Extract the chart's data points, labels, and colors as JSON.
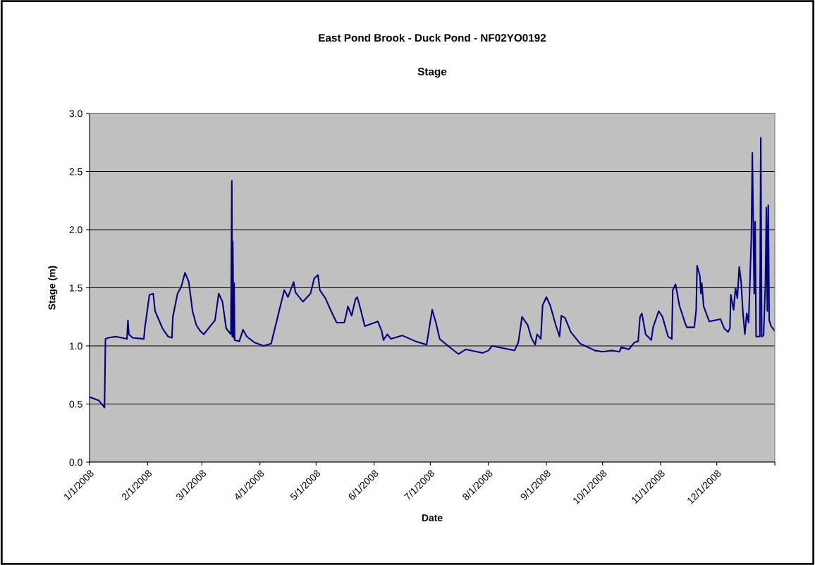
{
  "chart_data": {
    "type": "line",
    "title": "East Pond Brook - Duck Pond - NF02YO0192",
    "subtitle": "Stage",
    "xlabel": "Date",
    "ylabel": "Stage (m)",
    "x": [
      "2008-01-01",
      "2008-01-06",
      "2008-01-09",
      "2008-01-09T12:00",
      "2008-01-11",
      "2008-01-15",
      "2008-01-21",
      "2008-01-21T12:00",
      "2008-01-22",
      "2008-01-24",
      "2008-01-30",
      "2008-01-30T12:00",
      "2008-02-02",
      "2008-02-04",
      "2008-02-05",
      "2008-02-09",
      "2008-02-12",
      "2008-02-14",
      "2008-02-14T12:00",
      "2008-02-17",
      "2008-02-19",
      "2008-02-21",
      "2008-02-23",
      "2008-02-25",
      "2008-02-27",
      "2008-02-29",
      "2008-03-02",
      "2008-03-08",
      "2008-03-10",
      "2008-03-12",
      "2008-03-14",
      "2008-03-16T12:00",
      "2008-03-17",
      "2008-03-17T06:00",
      "2008-03-17T12:00",
      "2008-03-18",
      "2008-03-18T06:00",
      "2008-03-18T12:00",
      "2008-03-21",
      "2008-03-23",
      "2008-03-25",
      "2008-03-29",
      "2008-04-03",
      "2008-04-07",
      "2008-04-14",
      "2008-04-16",
      "2008-04-19",
      "2008-04-20",
      "2008-04-24",
      "2008-04-28",
      "2008-04-30",
      "2008-05-02",
      "2008-05-03",
      "2008-05-06",
      "2008-05-09",
      "2008-05-12",
      "2008-05-16",
      "2008-05-17",
      "2008-05-18",
      "2008-05-20",
      "2008-05-22",
      "2008-05-23",
      "2008-05-25",
      "2008-05-27",
      "2008-06-03",
      "2008-06-05",
      "2008-06-06",
      "2008-06-08",
      "2008-06-10",
      "2008-06-16",
      "2008-06-23",
      "2008-06-29",
      "2008-07-02",
      "2008-07-04",
      "2008-07-06",
      "2008-07-12",
      "2008-07-16",
      "2008-07-20",
      "2008-07-29",
      "2008-08-01",
      "2008-08-03",
      "2008-08-09",
      "2008-08-15",
      "2008-08-17",
      "2008-08-19",
      "2008-08-22",
      "2008-08-24",
      "2008-08-26",
      "2008-08-27",
      "2008-08-29",
      "2008-08-30",
      "2008-09-01",
      "2008-09-03",
      "2008-09-06",
      "2008-09-08",
      "2008-09-09",
      "2008-09-11",
      "2008-09-14",
      "2008-09-19",
      "2008-09-27",
      "2008-10-01",
      "2008-10-06",
      "2008-10-10",
      "2008-10-11",
      "2008-10-15",
      "2008-10-18",
      "2008-10-20",
      "2008-10-21",
      "2008-10-22",
      "2008-10-24",
      "2008-10-27",
      "2008-10-28",
      "2008-10-31",
      "2008-11-02",
      "2008-11-05",
      "2008-11-07",
      "2008-11-07T12:00",
      "2008-11-09",
      "2008-11-11",
      "2008-11-12",
      "2008-11-14",
      "2008-11-15",
      "2008-11-19",
      "2008-11-20",
      "2008-11-20T12:00",
      "2008-11-22",
      "2008-11-22T12:00",
      "2008-11-23",
      "2008-11-24",
      "2008-11-27",
      "2008-12-03",
      "2008-12-05",
      "2008-12-07",
      "2008-12-08",
      "2008-12-08T12:00",
      "2008-12-10",
      "2008-12-11",
      "2008-12-12",
      "2008-12-13",
      "2008-12-14",
      "2008-12-15",
      "2008-12-16",
      "2008-12-17",
      "2008-12-18",
      "2008-12-19T12:00",
      "2008-12-20",
      "2008-12-21",
      "2008-12-21T12:00",
      "2008-12-22",
      "2008-12-24",
      "2008-12-24T12:00",
      "2008-12-25",
      "2008-12-26",
      "2008-12-27",
      "2008-12-27T12:00",
      "2008-12-28",
      "2008-12-28T12:00",
      "2008-12-29",
      "2008-12-30",
      "2008-12-31T23:00"
    ],
    "series": [
      {
        "color": "#000080",
        "values": [
          0.56,
          0.53,
          0.47,
          1.06,
          1.07,
          1.08,
          1.06,
          1.22,
          1.1,
          1.07,
          1.06,
          1.15,
          1.44,
          1.45,
          1.3,
          1.15,
          1.08,
          1.07,
          1.25,
          1.45,
          1.51,
          1.63,
          1.55,
          1.3,
          1.18,
          1.13,
          1.1,
          1.22,
          1.45,
          1.38,
          1.15,
          1.1,
          2.42,
          1.08,
          1.9,
          1.07,
          1.54,
          1.05,
          1.04,
          1.14,
          1.08,
          1.03,
          1.0,
          1.02,
          1.48,
          1.42,
          1.55,
          1.46,
          1.38,
          1.45,
          1.58,
          1.61,
          1.48,
          1.41,
          1.3,
          1.2,
          1.2,
          1.26,
          1.34,
          1.26,
          1.4,
          1.42,
          1.3,
          1.17,
          1.21,
          1.13,
          1.05,
          1.1,
          1.06,
          1.09,
          1.04,
          1.01,
          1.31,
          1.2,
          1.06,
          0.98,
          0.93,
          0.97,
          0.94,
          0.96,
          1.0,
          0.98,
          0.96,
          1.03,
          1.25,
          1.18,
          1.07,
          1.01,
          1.1,
          1.06,
          1.35,
          1.42,
          1.35,
          1.18,
          1.08,
          1.26,
          1.24,
          1.12,
          1.02,
          0.96,
          0.95,
          0.96,
          0.95,
          0.99,
          0.97,
          1.03,
          1.04,
          1.25,
          1.28,
          1.1,
          1.05,
          1.16,
          1.3,
          1.25,
          1.08,
          1.06,
          1.48,
          1.53,
          1.35,
          1.3,
          1.2,
          1.16,
          1.16,
          1.31,
          1.69,
          1.6,
          1.45,
          1.54,
          1.34,
          1.21,
          1.23,
          1.15,
          1.12,
          1.15,
          1.44,
          1.31,
          1.5,
          1.41,
          1.68,
          1.55,
          1.28,
          1.1,
          1.28,
          1.2,
          1.95,
          2.66,
          1.45,
          2.07,
          1.08,
          1.08,
          2.79,
          1.08,
          1.09,
          1.56,
          2.19,
          1.3,
          2.21,
          1.22,
          1.17,
          1.13
        ]
      }
    ],
    "xlim": [
      "2008-01-01",
      "2009-01-01"
    ],
    "xticks": [
      {
        "value": "2008-01-01",
        "label": "1/1/2008"
      },
      {
        "value": "2008-02-01",
        "label": "2/1/2008"
      },
      {
        "value": "2008-03-01",
        "label": "3/1/2008"
      },
      {
        "value": "2008-04-01",
        "label": "4/1/2008"
      },
      {
        "value": "2008-05-01",
        "label": "5/1/2008"
      },
      {
        "value": "2008-06-01",
        "label": "6/1/2008"
      },
      {
        "value": "2008-07-01",
        "label": "7/1/2008"
      },
      {
        "value": "2008-08-01",
        "label": "8/1/2008"
      },
      {
        "value": "2008-09-01",
        "label": "9/1/2008"
      },
      {
        "value": "2008-10-01",
        "label": "10/1/2008"
      },
      {
        "value": "2008-11-01",
        "label": "11/1/2008"
      },
      {
        "value": "2008-12-01",
        "label": "12/1/2008"
      },
      {
        "value": "2009-01-01",
        "label": null
      }
    ],
    "ylim": [
      0,
      3
    ],
    "yticks": [
      {
        "value": 0,
        "label": "0.0"
      },
      {
        "value": 0.5,
        "label": "0.5"
      },
      {
        "value": 1,
        "label": "1.0"
      },
      {
        "value": 1.5,
        "label": "1.5"
      },
      {
        "value": 2,
        "label": "2.0"
      },
      {
        "value": 2.5,
        "label": "2.5"
      },
      {
        "value": 3,
        "label": "3.0"
      }
    ],
    "grid": "y",
    "line_style": "solid"
  }
}
